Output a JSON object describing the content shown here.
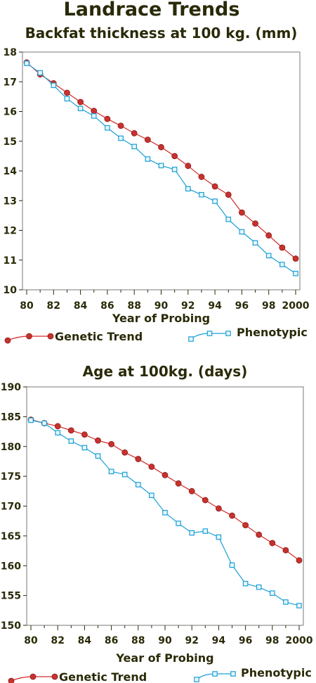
{
  "page": {
    "title": "Landrace Trends"
  },
  "colors": {
    "genetic": "#d42a2a",
    "genetic_fill": "#c8322e",
    "phenotypic": "#1aa0d6",
    "text": "#2a2a08",
    "plot_border": "#7a7a7a"
  },
  "chart_data": [
    {
      "type": "line",
      "title": "Backfat thickness at 100 kg. (mm)",
      "xlabel": "Year of Probing",
      "ylabel": "",
      "xlim": [
        80,
        2000
      ],
      "ylim": [
        10,
        18
      ],
      "x_tick_labels": [
        "80",
        "82",
        "84",
        "86",
        "88",
        "90",
        "92",
        "94",
        "96",
        "98",
        "2000"
      ],
      "y_tick_labels": [
        "10",
        "11",
        "12",
        "13",
        "14",
        "15",
        "16",
        "17",
        "18"
      ],
      "grid": false,
      "x": [
        80,
        81,
        82,
        83,
        84,
        85,
        86,
        87,
        88,
        89,
        90,
        91,
        92,
        93,
        94,
        95,
        96,
        97,
        98,
        99,
        2000
      ],
      "series": [
        {
          "name": "Genetic Trend",
          "marker": "circle",
          "values": [
            17.65,
            17.25,
            16.95,
            16.63,
            16.32,
            16.02,
            15.75,
            15.52,
            15.27,
            15.05,
            14.8,
            14.5,
            14.17,
            13.8,
            13.48,
            13.2,
            12.6,
            12.23,
            11.83,
            11.42,
            11.05
          ]
        },
        {
          "name": "Phenotypic",
          "marker": "square",
          "values": [
            17.62,
            17.3,
            16.88,
            16.43,
            16.1,
            15.85,
            15.45,
            15.1,
            14.82,
            14.4,
            14.18,
            14.05,
            13.4,
            13.2,
            12.98,
            12.37,
            11.95,
            11.58,
            11.15,
            10.85,
            10.55
          ]
        }
      ],
      "legend": "bottom"
    },
    {
      "type": "line",
      "title": "Age at 100kg. (days)",
      "xlabel": "Year of Probing",
      "ylabel": "",
      "xlim": [
        80,
        2000
      ],
      "ylim": [
        150,
        190
      ],
      "x_tick_labels": [
        "80",
        "82",
        "84",
        "86",
        "88",
        "90",
        "92",
        "94",
        "96",
        "98",
        "2000"
      ],
      "y_tick_labels": [
        "150",
        "155",
        "160",
        "165",
        "170",
        "175",
        "180",
        "185",
        "190"
      ],
      "grid": false,
      "x": [
        80,
        81,
        82,
        83,
        84,
        85,
        86,
        87,
        88,
        89,
        90,
        91,
        92,
        93,
        94,
        95,
        96,
        97,
        98,
        99,
        2000
      ],
      "series": [
        {
          "name": "Genetic Trend",
          "marker": "circle",
          "values": [
            184.5,
            183.9,
            183.4,
            182.7,
            182.0,
            181.0,
            180.4,
            179.0,
            177.9,
            176.6,
            175.2,
            173.8,
            172.5,
            171.0,
            169.6,
            168.4,
            166.8,
            165.2,
            163.8,
            162.6,
            160.9
          ]
        },
        {
          "name": "Phenotypic",
          "marker": "square",
          "values": [
            184.4,
            183.9,
            182.3,
            180.9,
            179.8,
            178.4,
            175.8,
            175.3,
            173.6,
            171.8,
            168.9,
            167.1,
            165.5,
            165.8,
            164.8,
            160.1,
            157.0,
            156.4,
            155.4,
            153.9,
            153.3
          ]
        }
      ],
      "legend": "bottom"
    }
  ]
}
